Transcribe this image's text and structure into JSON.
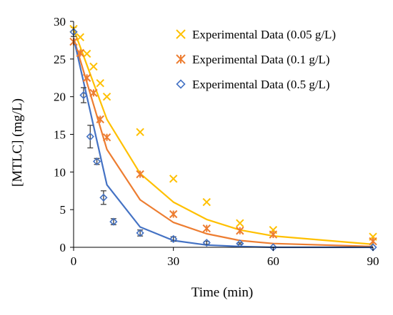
{
  "chart_data": {
    "type": "scatter",
    "xlabel": "Time (min)",
    "ylabel": "[MTLC] (mg/L)",
    "xlim": [
      0,
      90
    ],
    "ylim": [
      0,
      30
    ],
    "x_ticks": [
      "0",
      "30",
      "60",
      "90"
    ],
    "y_ticks": [
      "0",
      "5",
      "10",
      "15",
      "20",
      "25",
      "30"
    ],
    "grid": false,
    "legend_position": "top-right",
    "series": [
      {
        "name": "Experimental Data (0.05 g/L)",
        "marker": "x",
        "color": "#FFC000",
        "points": [
          [
            0,
            29.0
          ],
          [
            2,
            27.9
          ],
          [
            4,
            25.7
          ],
          [
            6,
            24.0
          ],
          [
            8,
            21.8
          ],
          [
            10,
            20.0
          ],
          [
            20,
            15.3
          ],
          [
            30,
            9.1
          ],
          [
            40,
            6.0
          ],
          [
            50,
            3.2
          ],
          [
            60,
            2.3
          ],
          [
            90,
            1.4
          ]
        ],
        "fit": [
          [
            0,
            29.0
          ],
          [
            10,
            17.0
          ],
          [
            20,
            9.8
          ],
          [
            30,
            6.0
          ],
          [
            40,
            3.7
          ],
          [
            50,
            2.3
          ],
          [
            60,
            1.5
          ],
          [
            90,
            0.4
          ]
        ]
      },
      {
        "name": "Experimental Data (0.1 g/L)",
        "marker": "asterisk",
        "color": "#ED7D31",
        "points": [
          [
            0,
            27.3
          ],
          [
            2,
            25.8
          ],
          [
            4,
            22.5
          ],
          [
            6,
            20.5
          ],
          [
            8,
            17.0
          ],
          [
            10,
            14.6
          ],
          [
            20,
            9.7
          ],
          [
            30,
            4.4
          ],
          [
            40,
            2.5
          ],
          [
            50,
            2.2
          ],
          [
            60,
            1.7
          ],
          [
            90,
            0.8
          ]
        ],
        "fit": [
          [
            0,
            27.8
          ],
          [
            10,
            13.0
          ],
          [
            20,
            6.3
          ],
          [
            30,
            3.3
          ],
          [
            40,
            1.8
          ],
          [
            50,
            0.9
          ],
          [
            60,
            0.5
          ],
          [
            90,
            0.1
          ]
        ]
      },
      {
        "name": "Experimental Data (0.5 g/L)",
        "marker": "diamond",
        "color": "#4472C4",
        "points": [
          [
            0,
            28.6
          ],
          [
            3,
            20.2
          ],
          [
            5,
            14.7
          ],
          [
            7,
            11.4
          ],
          [
            9,
            6.6
          ],
          [
            12,
            3.4
          ],
          [
            20,
            1.9
          ],
          [
            30,
            1.1
          ],
          [
            40,
            0.6
          ],
          [
            50,
            0.5
          ],
          [
            60,
            0.0
          ],
          [
            90,
            0.0
          ]
        ],
        "error_bars": [
          0.6,
          1.0,
          1.5,
          0.4,
          0.9,
          0.4,
          0.4,
          0.3,
          0.2,
          0.1,
          0.0,
          0.0
        ],
        "fit": [
          [
            0,
            27.8
          ],
          [
            10,
            8.3
          ],
          [
            20,
            2.7
          ],
          [
            30,
            0.9
          ],
          [
            40,
            0.3
          ],
          [
            50,
            0.1
          ],
          [
            60,
            0.0
          ],
          [
            90,
            0.0
          ]
        ]
      }
    ]
  }
}
